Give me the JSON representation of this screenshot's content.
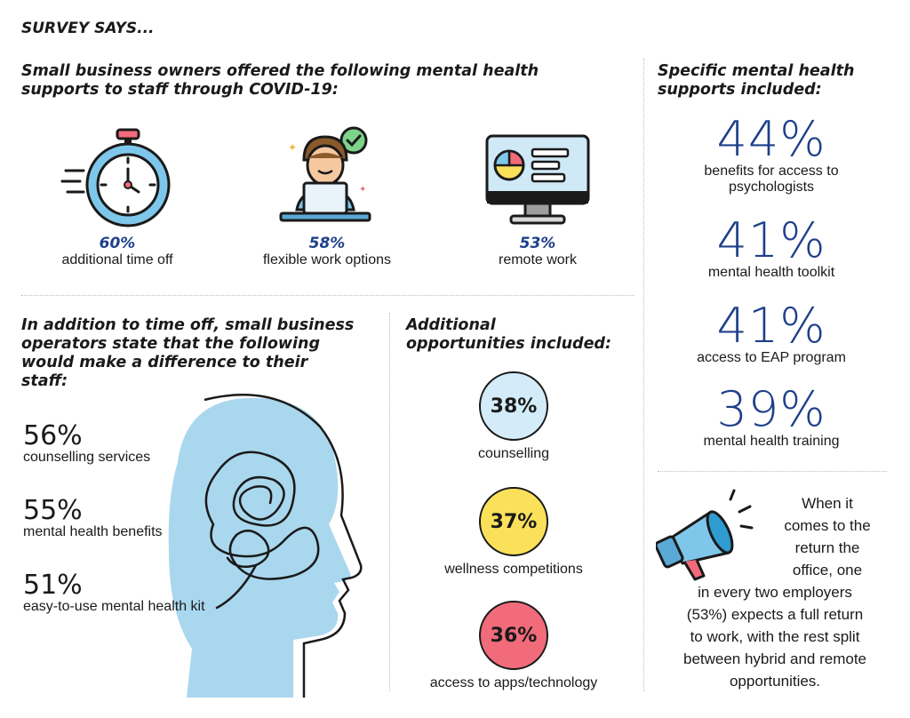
{
  "header": {
    "title": "SURVEY SAYS..."
  },
  "supports_section": {
    "heading_line1": "Small business owners offered the following mental health",
    "heading_line2": "supports to staff through COVID-19:",
    "items": [
      {
        "icon": "stopwatch-icon",
        "percent": "60%",
        "label": "additional time off"
      },
      {
        "icon": "person-laptop-icon",
        "percent": "58%",
        "label": "flexible work options"
      },
      {
        "icon": "monitor-chart-icon",
        "percent": "53%",
        "label": "remote work"
      }
    ]
  },
  "difference_section": {
    "heading_lines": [
      "In addition to time off, small business",
      "operators state that the following",
      "would make a difference to their",
      "staff:"
    ],
    "items": [
      {
        "percent": "56%",
        "label": "counselling services"
      },
      {
        "percent": "55%",
        "label": "mental health benefits"
      },
      {
        "percent": "51%",
        "label": "easy-to-use mental health kit"
      }
    ]
  },
  "opportunities_section": {
    "heading_line1": "Additional",
    "heading_line2": "opportunities included:",
    "items": [
      {
        "percent": "38%",
        "label": "counselling",
        "color": "#d4ecf9"
      },
      {
        "percent": "37%",
        "label": "wellness competitions",
        "color": "#fbe15a"
      },
      {
        "percent": "36%",
        "label": "access to apps/technology",
        "color": "#f26b7a"
      }
    ]
  },
  "specific_section": {
    "heading_line1": "Specific mental health",
    "heading_line2": "supports included:",
    "items": [
      {
        "percent": "44%",
        "label_lines": [
          "benefits for access to",
          "psychologists"
        ]
      },
      {
        "percent": "41%",
        "label_lines": [
          "mental health toolkit"
        ]
      },
      {
        "percent": "41%",
        "label_lines": [
          "access to EAP program"
        ]
      },
      {
        "percent": "39%",
        "label_lines": [
          "mental health training"
        ]
      }
    ]
  },
  "return_section": {
    "icon": "megaphone-icon",
    "lines": [
      "When it",
      "comes to the",
      "return the",
      "office, one",
      "in every two employers",
      "(53%) expects a full return",
      "to work, with the rest split",
      "between hybrid and remote",
      "opportunities."
    ]
  },
  "colors": {
    "brand_blue": "#1e3f8a",
    "light_blue": "#a9d7ee",
    "yellow": "#fbe15a",
    "coral": "#f26b7a"
  }
}
